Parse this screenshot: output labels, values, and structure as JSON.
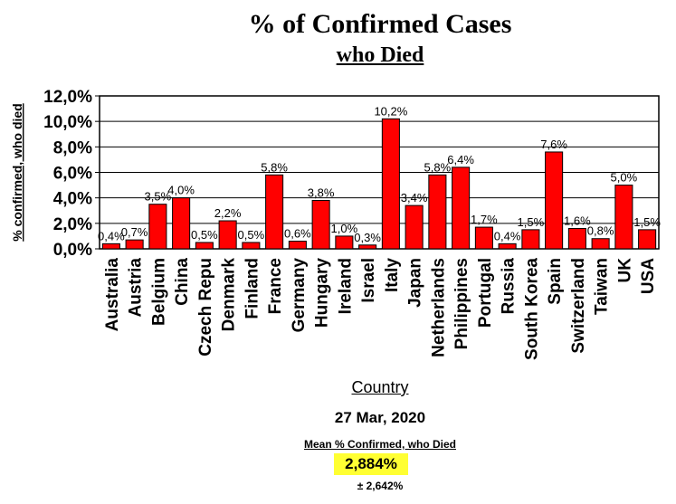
{
  "title": "% of Confirmed Cases",
  "subtitle": "who Died",
  "footer": {
    "date": "27 Mar, 2020",
    "mean_label": "Mean % Confirmed, who Died",
    "mean_value": "2,884%",
    "std_dev": "± 2,642%"
  },
  "chart_data": {
    "type": "bar",
    "xlabel": "Country",
    "ylabel": "% confirmed, who died",
    "ylim": [
      0,
      12
    ],
    "yticks": [
      "0,0%",
      "2,0%",
      "4,0%",
      "6,0%",
      "8,0%",
      "10,0%",
      "12,0%"
    ],
    "grid": true,
    "bar_color": "#ff0000",
    "categories": [
      "Australia",
      "Austria",
      "Belgium",
      "China",
      "Czech Repu",
      "Denmark",
      "Finland",
      "France",
      "Germany",
      "Hungary",
      "Ireland",
      "Israel",
      "Italy",
      "Japan",
      "Netherlands",
      "Philippines",
      "Portugal",
      "Russia",
      "South Korea",
      "Spain",
      "Switzerland",
      "Taiwan",
      "UK",
      "USA"
    ],
    "values": [
      0.4,
      0.7,
      3.5,
      4.0,
      0.5,
      2.2,
      0.5,
      5.8,
      0.6,
      3.8,
      1.0,
      0.3,
      10.2,
      3.4,
      5.8,
      6.4,
      1.7,
      0.4,
      1.5,
      7.6,
      1.6,
      0.8,
      5.0,
      1.5
    ],
    "data_labels": [
      "0,4%",
      "0,7%",
      "3,5%",
      "4,0%",
      "0,5%",
      "2,2%",
      "0,5%",
      "5,8%",
      "0,6%",
      "3,8%",
      "1,0%",
      "0,3%",
      "10,2%",
      "3,4%",
      "5,8%",
      "6,4%",
      "1,7%",
      "0,4%",
      "1,5%",
      "7,6%",
      "1,6%",
      "0,8%",
      "5,0%",
      "1,5%"
    ]
  }
}
